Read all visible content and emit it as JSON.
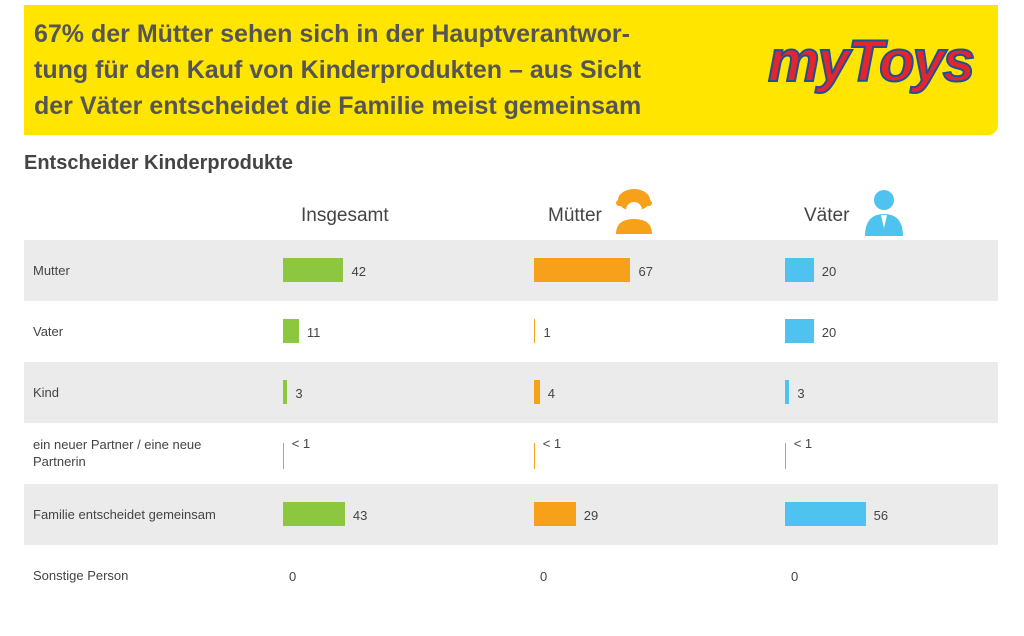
{
  "chart_data": {
    "type": "bar",
    "title": [
      "67% der Mütter sehen sich in der Hauptverantwor-",
      "tung für den Kauf von Kinderprodukten – aus Sicht",
      "der Väter entscheidet die Familie meist gemeinsam"
    ],
    "logo": "myToys",
    "subtitle": "Entscheider Kinderprodukte",
    "categories": [
      "Mutter",
      "Vater",
      "Kind",
      "ein neuer Partner / eine neue Partnerin",
      "Familie entscheidet gemeinsam",
      "Sonstige Person"
    ],
    "series": [
      {
        "name": "Insgesamt",
        "color": "#8dc63f",
        "values": [
          42,
          11,
          3,
          0.5,
          43,
          0
        ],
        "value_labels": [
          "42",
          "11",
          "3",
          "< 1",
          "43",
          "0"
        ]
      },
      {
        "name": "Mütter",
        "color": "#f7a11a",
        "values": [
          67,
          1,
          4,
          0.5,
          29,
          0
        ],
        "value_labels": [
          "67",
          "1",
          "4",
          "< 1",
          "29",
          "0"
        ]
      },
      {
        "name": "Väter",
        "color": "#4fc3f0",
        "values": [
          20,
          20,
          3,
          0.5,
          56,
          0
        ],
        "value_labels": [
          "20",
          "20",
          "3",
          "< 1",
          "56",
          "0"
        ]
      }
    ]
  }
}
